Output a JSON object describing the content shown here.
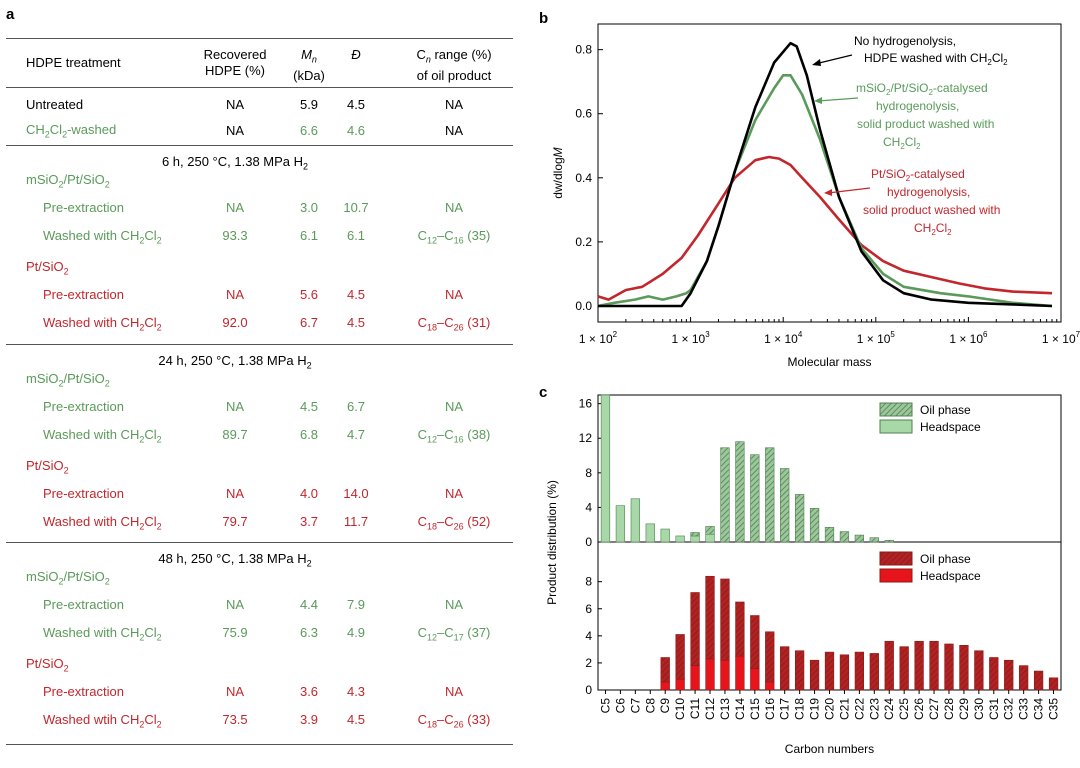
{
  "panels": {
    "a": "a",
    "b": "b",
    "c": "c"
  },
  "table": {
    "headers": {
      "treatment": "HDPE treatment",
      "recovered_1": "Recovered",
      "recovered_2": "HDPE (%)",
      "mn_1": "M",
      "mn_sub": "n",
      "mn_2": "(kDa)",
      "d": "Đ",
      "cn_1a": "C",
      "cn_sub": "n",
      "cn_1b": " range (%)",
      "cn_2": "of oil product"
    },
    "rows": [
      {
        "label": "Untreated",
        "recovered": "NA",
        "mn": "5.9",
        "d": "4.5",
        "cn": "NA"
      },
      {
        "label_pre": "CH",
        "label_s1": "2",
        "label_mid": "Cl",
        "label_s2": "2",
        "label_post": "-washed",
        "recovered": "NA",
        "mn": "6.6",
        "d": "4.6",
        "cn": "NA"
      }
    ],
    "sections": [
      {
        "condition_pre": "6 h, 250 °C, 1.38 MPa H",
        "condition_sub": "2",
        "groups": [
          {
            "name_pre": "mSiO",
            "name_s1": "2",
            "name_mid": "/Pt/SiO",
            "name_s2": "2",
            "pre": {
              "label": "Pre-extraction",
              "recovered": "NA",
              "mn": "3.0",
              "d": "10.7",
              "cn": "NA"
            },
            "wash": {
              "label": "Washed with CH",
              "recovered": "93.3",
              "mn": "6.1",
              "d": "6.1",
              "cn_a": "C",
              "cn_s1": "12",
              "cn_b": "–C",
              "cn_s2": "16",
              "cn_c": " (35)"
            }
          },
          {
            "name_pre": "Pt/SiO",
            "name_s1": "2",
            "pre": {
              "label": "Pre-extraction",
              "recovered": "NA",
              "mn": "5.6",
              "d": "4.5",
              "cn": "NA"
            },
            "wash": {
              "label": "Washed with CH",
              "recovered": "92.0",
              "mn": "6.7",
              "d": "4.5",
              "cn_a": "C",
              "cn_s1": "18",
              "cn_b": "–C",
              "cn_s2": "26",
              "cn_c": " (31)"
            }
          }
        ]
      },
      {
        "condition_pre": "24 h, 250 °C, 1.38 MPa H",
        "condition_sub": "2",
        "groups": [
          {
            "name_pre": "mSiO",
            "name_s1": "2",
            "name_mid": "/Pt/SiO",
            "name_s2": "2",
            "pre": {
              "label": "Pre-extraction",
              "recovered": "NA",
              "mn": "4.5",
              "d": "6.7",
              "cn": "NA"
            },
            "wash": {
              "label": "Washed with CH",
              "recovered": "89.7",
              "mn": "6.8",
              "d": "4.7",
              "cn_a": "C",
              "cn_s1": "12",
              "cn_b": "–C",
              "cn_s2": "16",
              "cn_c": " (38)"
            }
          },
          {
            "name_pre": "Pt/SiO",
            "name_s1": "2",
            "pre": {
              "label": "Pre-extraction",
              "recovered": "NA",
              "mn": "4.0",
              "d": "14.0",
              "cn": "NA"
            },
            "wash": {
              "label": "Washed with CH",
              "recovered": "79.7",
              "mn": "3.7",
              "d": "11.7",
              "cn_a": "C",
              "cn_s1": "18",
              "cn_b": "–C",
              "cn_s2": "26",
              "cn_c": " (52)"
            }
          }
        ]
      },
      {
        "condition_pre": "48 h, 250 °C, 1.38 MPa H",
        "condition_sub": "2",
        "groups": [
          {
            "name_pre": "mSiO",
            "name_s1": "2",
            "name_mid": "/Pt/SiO",
            "name_s2": "2",
            "pre": {
              "label": "Pre-extraction",
              "recovered": "NA",
              "mn": "4.4",
              "d": "7.9",
              "cn": "NA"
            },
            "wash": {
              "label": "Washed with CH",
              "recovered": "75.9",
              "mn": "6.3",
              "d": "4.9",
              "cn_a": "C",
              "cn_s1": "12",
              "cn_b": "–C",
              "cn_s2": "17",
              "cn_c": " (37)"
            }
          },
          {
            "name_pre": "Pt/SiO",
            "name_s1": "2",
            "pre": {
              "label": "Pre-extraction",
              "recovered": "NA",
              "mn": "3.6",
              "d": "4.3",
              "cn": "NA"
            },
            "wash": {
              "label": "Washed wtih CH",
              "recovered": "73.5",
              "mn": "3.9",
              "d": "4.5",
              "cn_a": "C",
              "cn_s1": "18",
              "cn_b": "–C",
              "cn_s2": "26",
              "cn_c": " (33)"
            }
          }
        ]
      }
    ],
    "cl_text": "Cl",
    "sub2": "2"
  },
  "colors": {
    "green": "#5a9a5a",
    "red": "#c1272d",
    "black": "#000000",
    "headspace_green": "#a8d8a8",
    "oil_green": "#4f7f4f",
    "oil_red": "#8b1a1a",
    "headspace_red": "#e8141b"
  },
  "chart_data": [
    {
      "type": "line",
      "title": "",
      "xlabel": "Molecular mass",
      "ylabel_pre": "dw/dlog",
      "ylabel_italic": "M",
      "xscale": "log",
      "xlim": [
        100,
        10000000
      ],
      "ylim": [
        -0.05,
        0.88
      ],
      "xticks": [
        100,
        1000,
        10000,
        100000,
        1000000,
        10000000
      ],
      "xtick_labels": [
        "1 × 10",
        "1 × 10",
        "1 × 10",
        "1 × 10",
        "1 × 10",
        "1 × 10"
      ],
      "xtick_exps": [
        "2",
        "3",
        "4",
        "5",
        "6",
        "7"
      ],
      "yticks": [
        0.0,
        0.2,
        0.4,
        0.6,
        0.8
      ],
      "ytick_labels": [
        "0.0",
        "0.2",
        "0.4",
        "0.6",
        "0.8"
      ],
      "series": [
        {
          "name": "HDPE washed",
          "color": "#000000",
          "x": [
            100,
            300,
            600,
            800,
            1000,
            1500,
            2000,
            3000,
            5000,
            8000,
            12000,
            14000,
            18000,
            25000,
            40000,
            70000,
            120000,
            200000,
            400000,
            1000000,
            3000000,
            8000000
          ],
          "y": [
            0.0,
            0.0,
            0.0,
            0.0,
            0.04,
            0.14,
            0.25,
            0.42,
            0.62,
            0.76,
            0.82,
            0.81,
            0.72,
            0.55,
            0.34,
            0.17,
            0.08,
            0.04,
            0.02,
            0.01,
            0.005,
            0.0
          ]
        },
        {
          "name": "mSiO2/Pt/SiO2",
          "color": "#5a9a5a",
          "x": [
            100,
            150,
            250,
            350,
            500,
            700,
            900,
            1000,
            1500,
            2000,
            3000,
            5000,
            8000,
            10000,
            12000,
            16000,
            25000,
            40000,
            70000,
            120000,
            200000,
            500000,
            1000000,
            3000000,
            8000000
          ],
          "y": [
            0.0,
            0.01,
            0.02,
            0.03,
            0.02,
            0.03,
            0.04,
            0.05,
            0.14,
            0.25,
            0.42,
            0.58,
            0.68,
            0.72,
            0.72,
            0.66,
            0.52,
            0.34,
            0.18,
            0.1,
            0.06,
            0.04,
            0.03,
            0.01,
            0.0
          ]
        },
        {
          "name": "Pt/SiO2",
          "color": "#c1272d",
          "x": [
            100,
            130,
            200,
            300,
            500,
            800,
            1200,
            2000,
            3000,
            5000,
            7000,
            9000,
            12000,
            16000,
            25000,
            40000,
            70000,
            120000,
            200000,
            400000,
            800000,
            1500000,
            3000000,
            8000000
          ],
          "y": [
            0.03,
            0.02,
            0.05,
            0.06,
            0.1,
            0.15,
            0.22,
            0.32,
            0.4,
            0.455,
            0.465,
            0.46,
            0.44,
            0.4,
            0.34,
            0.27,
            0.19,
            0.14,
            0.11,
            0.09,
            0.07,
            0.055,
            0.045,
            0.04
          ]
        }
      ],
      "annotations": [
        {
          "lines": [
            "No hydrogenolysis,",
            "HDPE washed with CH|2|Cl|2|"
          ],
          "color": "#000000"
        },
        {
          "lines": [
            "mSiO|2|/Pt/SiO|2|-catalysed",
            "hydrogenolysis,",
            "solid product washed with",
            "CH|2|Cl|2|"
          ],
          "color": "#5a9a5a"
        },
        {
          "lines": [
            "Pt/SiO|2|-catalysed",
            "hydrogenolysis,",
            "solid product washed with",
            "CH|2|Cl|2|"
          ],
          "color": "#c1272d"
        }
      ]
    },
    {
      "type": "bar",
      "xlabel": "Carbon numbers",
      "ylabel": "Product distribution (%)",
      "categories": [
        "C5",
        "C6",
        "C7",
        "C8",
        "C9",
        "C10",
        "C11",
        "C12",
        "C13",
        "C14",
        "C15",
        "C16",
        "C17",
        "C18",
        "C19",
        "C20",
        "C21",
        "C22",
        "C23",
        "C24",
        "C25",
        "C26",
        "C27",
        "C28",
        "C29",
        "C30",
        "C31",
        "C32",
        "C33",
        "C34",
        "C35"
      ],
      "top": {
        "ylim": [
          0,
          17
        ],
        "yticks": [
          0,
          4,
          8,
          12,
          16
        ],
        "legend": [
          "Oil phase",
          "Headspace"
        ],
        "series": [
          {
            "name": "Headspace",
            "values": [
              17.0,
              4.2,
              5.0,
              2.1,
              1.5,
              0.7,
              0.7,
              0.9,
              0,
              0,
              0,
              0,
              0,
              0,
              0,
              0,
              0,
              0,
              0,
              0,
              0,
              0,
              0,
              0,
              0,
              0,
              0,
              0,
              0,
              0,
              0
            ]
          },
          {
            "name": "Oil phase",
            "values": [
              0,
              0,
              0,
              0,
              0,
              0,
              0.4,
              0.9,
              10.9,
              11.6,
              10.1,
              10.9,
              8.5,
              5.5,
              3.9,
              1.7,
              1.2,
              0.8,
              0.5,
              0.2,
              0,
              0,
              0,
              0,
              0,
              0,
              0,
              0,
              0,
              0,
              0
            ]
          }
        ]
      },
      "bottom": {
        "ylim": [
          0,
          9.6
        ],
        "yticks": [
          0,
          2,
          4,
          6,
          8
        ],
        "legend": [
          "Oil phase",
          "Headspace"
        ],
        "series": [
          {
            "name": "Headspace",
            "values": [
              0,
              0,
              0,
              0,
              0.6,
              0.8,
              1.8,
              2.3,
              2.2,
              2.5,
              1.6,
              0.6,
              0,
              0,
              0,
              0,
              0,
              0,
              0,
              0,
              0,
              0,
              0,
              0,
              0,
              0,
              0,
              0,
              0,
              0,
              0
            ]
          },
          {
            "name": "Oil phase",
            "values": [
              0,
              0,
              0,
              0,
              1.8,
              3.3,
              5.4,
              6.1,
              6.0,
              4.0,
              3.9,
              3.7,
              3.2,
              2.9,
              2.2,
              2.8,
              2.6,
              2.8,
              2.7,
              3.6,
              3.2,
              3.6,
              3.6,
              3.4,
              3.3,
              2.9,
              2.4,
              2.2,
              1.8,
              1.4,
              0.9
            ]
          }
        ]
      }
    }
  ]
}
